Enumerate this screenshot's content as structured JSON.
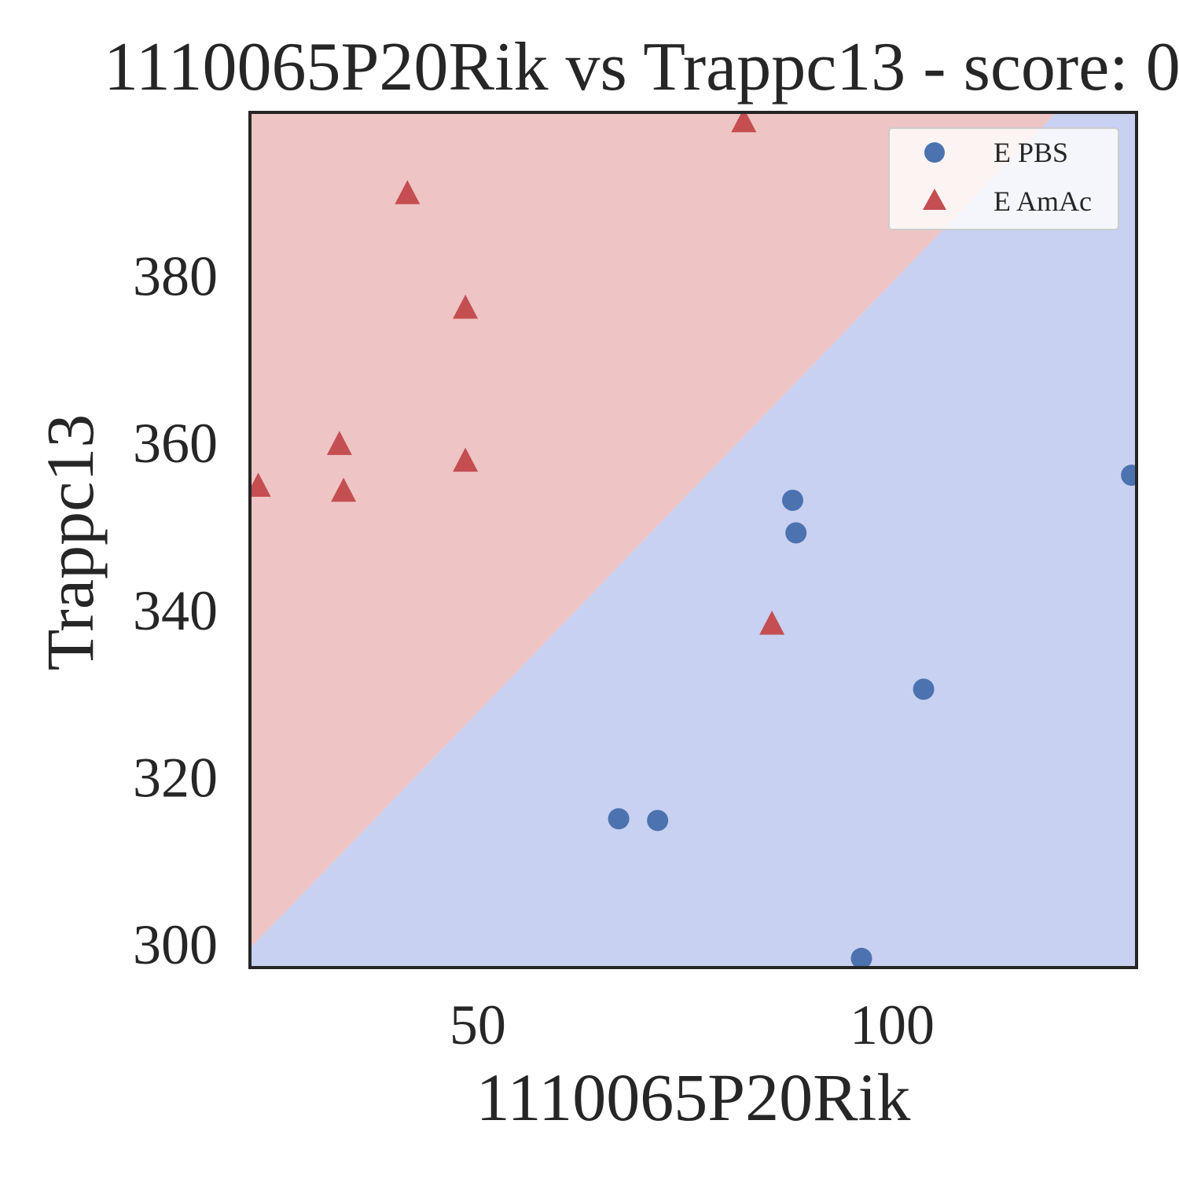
{
  "chart_data": {
    "type": "scatter",
    "title": "1110065P20Rik vs Trappc13 - score: 0",
    "xlabel": "1110065P20Rik",
    "ylabel": "Trappc13",
    "xlim": [
      22.5,
      129.5
    ],
    "ylim": [
      297.2,
      399.5
    ],
    "xticks": [
      50,
      100
    ],
    "yticks": [
      300,
      320,
      340,
      360,
      380
    ],
    "grid": false,
    "legend_position": "top-right",
    "decision_regions": {
      "upper_left_class": "E AmAc",
      "lower_right_class": "E PBS",
      "boundary_line": [
        [
          22.5,
          299.5
        ],
        [
          119.8,
          399.5
        ]
      ],
      "colors": {
        "E AmAc": "#eec4c4",
        "E PBS": "#c8d1f1"
      }
    },
    "series": [
      {
        "name": "E PBS",
        "marker": "circle",
        "color": "#4c72b0",
        "points": [
          [
            67.0,
            315.0
          ],
          [
            71.7,
            314.8
          ],
          [
            88.0,
            353.1
          ],
          [
            88.4,
            349.2
          ],
          [
            96.3,
            298.3
          ],
          [
            103.8,
            330.5
          ],
          [
            128.9,
            356.1
          ]
        ]
      },
      {
        "name": "E AmAc",
        "marker": "triangle",
        "color": "#c44e52",
        "points": [
          [
            23.5,
            354.8
          ],
          [
            33.3,
            359.8
          ],
          [
            33.8,
            354.2
          ],
          [
            41.5,
            389.8
          ],
          [
            48.5,
            376.1
          ],
          [
            48.5,
            357.8
          ],
          [
            82.1,
            398.4
          ],
          [
            85.5,
            338.3
          ]
        ]
      }
    ]
  }
}
